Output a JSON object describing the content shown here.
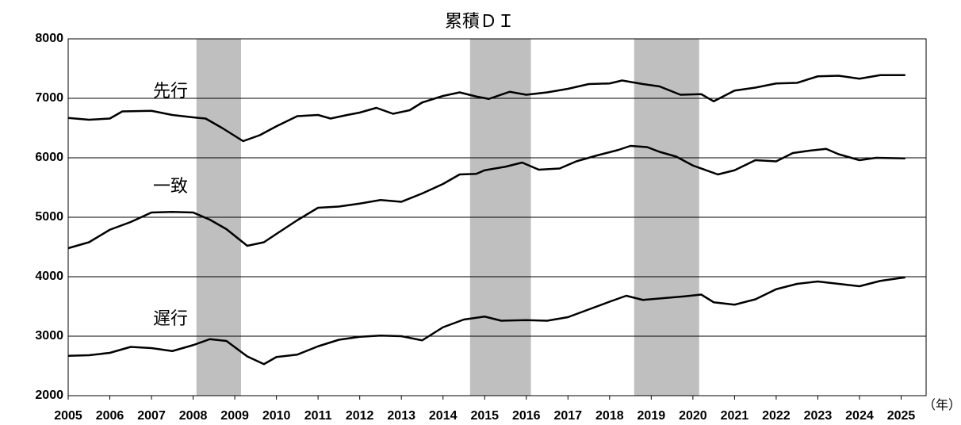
{
  "chart_data": {
    "type": "line",
    "title": "累積ＤＩ",
    "x_label": "（年）",
    "xlim": [
      2005,
      2025.6
    ],
    "ylim": [
      2000,
      8000
    ],
    "xticks": [
      2005,
      2006,
      2007,
      2008,
      2009,
      2010,
      2011,
      2012,
      2013,
      2014,
      2015,
      2016,
      2017,
      2018,
      2019,
      2020,
      2021,
      2022,
      2023,
      2024,
      2025
    ],
    "yticks": [
      2000,
      3000,
      4000,
      5000,
      6000,
      7000,
      8000
    ],
    "grid": true,
    "shaded_color": "#bfbfbf",
    "shaded": [
      [
        2008.08,
        2009.15
      ],
      [
        2014.65,
        2016.11
      ],
      [
        2018.59,
        2020.15
      ]
    ],
    "series": [
      {
        "name": "先行",
        "color": "#000000",
        "x": [
          2005,
          2005.5,
          2006,
          2006.3,
          2007,
          2007.5,
          2008,
          2008.3,
          2008.7,
          2009.2,
          2009.6,
          2010,
          2010.5,
          2011,
          2011.3,
          2011.7,
          2012,
          2012.4,
          2012.8,
          2013.2,
          2013.5,
          2014,
          2014.4,
          2014.8,
          2015.1,
          2015.6,
          2016,
          2016.5,
          2017,
          2017.5,
          2018,
          2018.3,
          2018.8,
          2019.2,
          2019.7,
          2020.2,
          2020.5,
          2021,
          2021.5,
          2022,
          2022.5,
          2023,
          2023.5,
          2024,
          2024.5,
          2025.1
        ],
        "values": [
          6670,
          6640,
          6660,
          6780,
          6790,
          6720,
          6680,
          6660,
          6500,
          6280,
          6380,
          6530,
          6700,
          6720,
          6660,
          6720,
          6760,
          6840,
          6740,
          6800,
          6930,
          7040,
          7100,
          7030,
          6990,
          7110,
          7060,
          7100,
          7160,
          7240,
          7250,
          7300,
          7240,
          7200,
          7060,
          7070,
          6950,
          7130,
          7180,
          7250,
          7260,
          7370,
          7380,
          7330,
          7390,
          7390
        ]
      },
      {
        "name": "一致",
        "color": "#000000",
        "x": [
          2005,
          2005.5,
          2006,
          2006.5,
          2007,
          2007.5,
          2008,
          2008.4,
          2008.8,
          2009.3,
          2009.7,
          2010,
          2010.5,
          2011,
          2011.5,
          2012,
          2012.5,
          2013,
          2013.5,
          2014,
          2014.4,
          2014.8,
          2015,
          2015.5,
          2015.9,
          2016.3,
          2016.8,
          2017.2,
          2017.7,
          2018.2,
          2018.5,
          2018.9,
          2019.2,
          2019.6,
          2020,
          2020.6,
          2021,
          2021.5,
          2022,
          2022.4,
          2022.8,
          2023.2,
          2023.5,
          2024,
          2024.4,
          2025.1
        ],
        "values": [
          4480,
          4580,
          4790,
          4920,
          5080,
          5090,
          5080,
          4960,
          4800,
          4520,
          4580,
          4720,
          4950,
          5160,
          5180,
          5230,
          5290,
          5260,
          5400,
          5560,
          5720,
          5730,
          5790,
          5850,
          5920,
          5800,
          5820,
          5940,
          6040,
          6130,
          6200,
          6180,
          6100,
          6020,
          5870,
          5720,
          5790,
          5960,
          5940,
          6080,
          6120,
          6150,
          6060,
          5960,
          6000,
          5990
        ]
      },
      {
        "name": "遅行",
        "color": "#000000",
        "x": [
          2005,
          2005.5,
          2006,
          2006.5,
          2007,
          2007.5,
          2008,
          2008.4,
          2008.8,
          2009.3,
          2009.7,
          2010,
          2010.5,
          2011,
          2011.5,
          2012,
          2012.5,
          2013,
          2013.5,
          2014,
          2014.5,
          2015,
          2015.4,
          2016,
          2016.5,
          2017,
          2017.5,
          2018,
          2018.4,
          2018.8,
          2019.3,
          2019.8,
          2020.2,
          2020.5,
          2021,
          2021.5,
          2022,
          2022.5,
          2023,
          2023.5,
          2024,
          2024.5,
          2025.1
        ],
        "values": [
          2670,
          2680,
          2720,
          2820,
          2800,
          2750,
          2850,
          2950,
          2920,
          2660,
          2530,
          2650,
          2690,
          2830,
          2940,
          2990,
          3010,
          3000,
          2930,
          3150,
          3280,
          3330,
          3260,
          3270,
          3260,
          3320,
          3450,
          3580,
          3680,
          3610,
          3640,
          3670,
          3700,
          3570,
          3530,
          3620,
          3790,
          3880,
          3920,
          3880,
          3840,
          3930,
          3990
        ]
      }
    ]
  }
}
